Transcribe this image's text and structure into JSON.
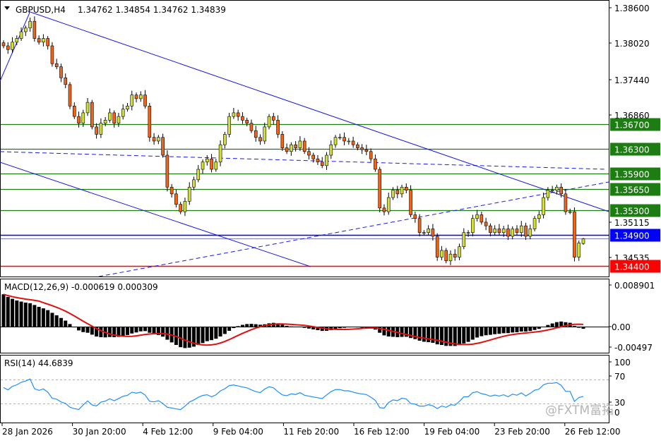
{
  "header": {
    "symbol_timeframe": "GBPUSD,H4",
    "ohlc": "1.34762 1.34854 1.34762 1.34839"
  },
  "colors": {
    "bull": "#d4e030",
    "bear": "#f06418",
    "support_resistance": "#1e7d12",
    "current": "#0000ff",
    "low_level": "#ff0000",
    "trendline": "#1a1ae6",
    "macd_signal": "#e01010",
    "rsi": "#1e8fff"
  },
  "watermark": "@FXTM富拓",
  "chart_data": [
    {
      "type": "candlestick",
      "title": "GBPUSD,H4",
      "ylim": [
        1.3427,
        1.3872
      ],
      "y_ticks": [
        "1.38600",
        "1.38020",
        "1.37440",
        "1.36860",
        "1.35115",
        "1.34535"
      ],
      "x_ticks": [
        "28 Jan 2026",
        "30 Jan 20:00",
        "4 Feb 12:00",
        "9 Feb 04:00",
        "11 Feb 20:00",
        "16 Feb 12:00",
        "19 Feb 04:00",
        "23 Feb 20:00",
        "26 Feb 12:00"
      ],
      "last_bar": {
        "open": 1.34762,
        "high": 1.34854,
        "low": 1.34762,
        "close": 1.34839
      },
      "closes": [
        1.3798,
        1.3792,
        1.3804,
        1.381,
        1.3821,
        1.3827,
        1.3838,
        1.381,
        1.3804,
        1.381,
        1.3798,
        1.3769,
        1.3764,
        1.3746,
        1.3735,
        1.37,
        1.3683,
        1.3672,
        1.3689,
        1.3706,
        1.3666,
        1.3654,
        1.3672,
        1.3677,
        1.3689,
        1.3672,
        1.3683,
        1.3695,
        1.37,
        1.3718,
        1.3712,
        1.3718,
        1.37,
        1.3649,
        1.3643,
        1.3649,
        1.362,
        1.3568,
        1.3557,
        1.354,
        1.3528,
        1.3545,
        1.3568,
        1.358,
        1.3597,
        1.3609,
        1.3614,
        1.3597,
        1.3609,
        1.3637,
        1.3654,
        1.3683,
        1.3689,
        1.3683,
        1.3677,
        1.3672,
        1.366,
        1.3649,
        1.3643,
        1.3666,
        1.3683,
        1.3677,
        1.3654,
        1.3632,
        1.3626,
        1.3637,
        1.3632,
        1.3643,
        1.3626,
        1.362,
        1.3614,
        1.3609,
        1.3603,
        1.362,
        1.3637,
        1.3649,
        1.3649,
        1.3643,
        1.3643,
        1.3637,
        1.3632,
        1.3629,
        1.3626,
        1.3614,
        1.3597,
        1.3534,
        1.3528,
        1.3551,
        1.3563,
        1.3557,
        1.3568,
        1.3563,
        1.3523,
        1.3517,
        1.3494,
        1.3494,
        1.35,
        1.3488,
        1.3454,
        1.3465,
        1.3448,
        1.3459,
        1.3454,
        1.3471,
        1.3494,
        1.3494,
        1.3517,
        1.3523,
        1.3511,
        1.3505,
        1.3494,
        1.35,
        1.3494,
        1.35,
        1.3488,
        1.35,
        1.3494,
        1.3505,
        1.3488,
        1.35,
        1.3517,
        1.3523,
        1.3551,
        1.3563,
        1.3563,
        1.3568,
        1.3557,
        1.3528,
        1.3528,
        1.3454,
        1.3477,
        1.34839
      ],
      "horizontal_levels": [
        {
          "label": "1.36700",
          "value": 1.367,
          "kind": "support_resistance"
        },
        {
          "label": "1.36300",
          "value": 1.363,
          "kind": "support_resistance"
        },
        {
          "label": "1.35900",
          "value": 1.359,
          "kind": "support_resistance"
        },
        {
          "label": "1.35650",
          "value": 1.3565,
          "kind": "support_resistance"
        },
        {
          "label": "1.35300",
          "value": 1.353,
          "kind": "support_resistance"
        },
        {
          "label": "1.34900",
          "value": 1.349,
          "kind": "current"
        },
        {
          "label": "1.34400",
          "value": 1.344,
          "kind": "low_level"
        }
      ]
    },
    {
      "type": "histogram+line",
      "title": "MACD(12,26,9) -0.000619 0.000309",
      "y_ticks": [
        "0.008901",
        "0.00",
        "-0.00497"
      ],
      "ylim": [
        -0.0055,
        0.0095
      ]
    },
    {
      "type": "line",
      "title": "RSI(14) 44.6839",
      "y_ticks": [
        "100",
        "70",
        "30",
        "0"
      ],
      "ylim": [
        0,
        100
      ],
      "levels": [
        70,
        30
      ]
    }
  ]
}
